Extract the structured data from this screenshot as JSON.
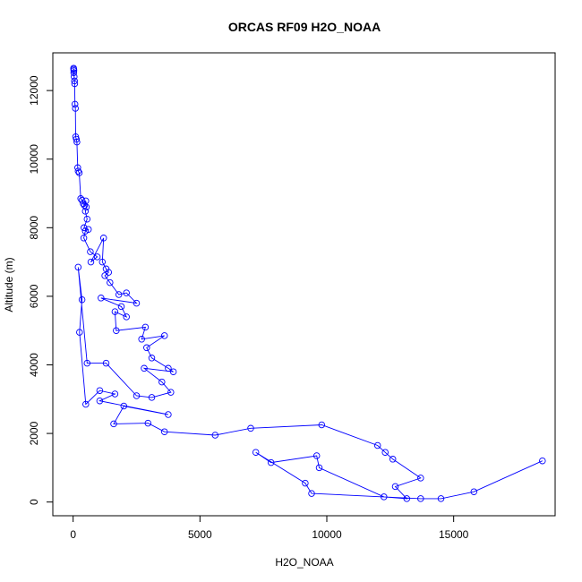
{
  "chart_data": {
    "type": "scatter",
    "title": "ORCAS RF09 H2O_NOAA",
    "xlabel": "H2O_NOAA",
    "ylabel": "Altitude (m)",
    "xlim": [
      -800,
      19000
    ],
    "ylim": [
      -400,
      13100
    ],
    "xticks": [
      0,
      5000,
      10000,
      15000
    ],
    "yticks": [
      0,
      2000,
      4000,
      6000,
      8000,
      10000,
      12000
    ],
    "grid": false,
    "legend": "none",
    "marker": "open-circle",
    "line": "connected",
    "color": "#0000ff",
    "points": [
      [
        20,
        12650
      ],
      [
        25,
        12620
      ],
      [
        30,
        12580
      ],
      [
        25,
        12520
      ],
      [
        40,
        12400
      ],
      [
        55,
        12280
      ],
      [
        60,
        12200
      ],
      [
        70,
        11600
      ],
      [
        90,
        11480
      ],
      [
        100,
        10650
      ],
      [
        130,
        10580
      ],
      [
        150,
        10500
      ],
      [
        180,
        9750
      ],
      [
        200,
        9650
      ],
      [
        240,
        9600
      ],
      [
        300,
        8850
      ],
      [
        350,
        8800
      ],
      [
        400,
        8700
      ],
      [
        450,
        8650
      ],
      [
        500,
        8780
      ],
      [
        520,
        8600
      ],
      [
        480,
        8480
      ],
      [
        550,
        8250
      ],
      [
        430,
        8000
      ],
      [
        600,
        7950
      ],
      [
        480,
        7900
      ],
      [
        420,
        7700
      ],
      [
        680,
        7300
      ],
      [
        950,
        7150
      ],
      [
        700,
        7000
      ],
      [
        1200,
        7700
      ],
      [
        1150,
        7000
      ],
      [
        1300,
        6800
      ],
      [
        1400,
        6700
      ],
      [
        1250,
        6600
      ],
      [
        1450,
        6400
      ],
      [
        1800,
        6050
      ],
      [
        2100,
        6100
      ],
      [
        2500,
        5800
      ],
      [
        1100,
        5950
      ],
      [
        1900,
        5700
      ],
      [
        2100,
        5400
      ],
      [
        1650,
        5550
      ],
      [
        1700,
        5000
      ],
      [
        2850,
        5100
      ],
      [
        2700,
        4750
      ],
      [
        3600,
        4850
      ],
      [
        2900,
        4500
      ],
      [
        3100,
        4200
      ],
      [
        3750,
        3900
      ],
      [
        3950,
        3800
      ],
      [
        2800,
        3900
      ],
      [
        3500,
        3500
      ],
      [
        3850,
        3200
      ],
      [
        3100,
        3050
      ],
      [
        2500,
        3100
      ],
      [
        1300,
        4050
      ],
      [
        550,
        4050
      ],
      [
        200,
        6850
      ],
      [
        350,
        5900
      ],
      [
        250,
        4950
      ],
      [
        500,
        2850
      ],
      [
        1050,
        3250
      ],
      [
        1650,
        3150
      ],
      [
        1050,
        2950
      ],
      [
        3750,
        2550
      ],
      [
        2000,
        2800
      ],
      [
        1600,
        2280
      ],
      [
        2950,
        2300
      ],
      [
        3600,
        2050
      ],
      [
        5600,
        1950
      ],
      [
        7000,
        2150
      ],
      [
        9800,
        2250
      ],
      [
        12000,
        1650
      ],
      [
        12300,
        1450
      ],
      [
        12600,
        1250
      ],
      [
        13700,
        700
      ],
      [
        12700,
        450
      ],
      [
        13150,
        100
      ],
      [
        12250,
        150
      ],
      [
        9700,
        1000
      ],
      [
        9600,
        1350
      ],
      [
        7800,
        1150
      ],
      [
        7200,
        1450
      ],
      [
        9150,
        550
      ],
      [
        9400,
        250
      ],
      [
        13700,
        100
      ],
      [
        14500,
        100
      ],
      [
        15800,
        300
      ],
      [
        18500,
        1200
      ]
    ]
  }
}
